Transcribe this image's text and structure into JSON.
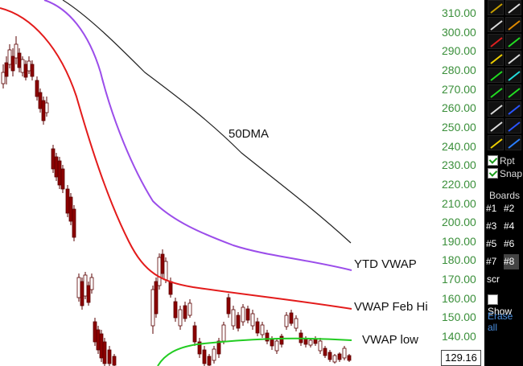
{
  "chart_data": {
    "type": "candlestick",
    "y_axis": {
      "ticks": [
        "310.00",
        "300.00",
        "290.00",
        "280.00",
        "270.00",
        "260.00",
        "250.00",
        "240.00",
        "230.00",
        "220.00",
        "210.00",
        "200.00",
        "190.00",
        "180.00",
        "170.00",
        "160.00",
        "150.00",
        "140.00"
      ],
      "range": [
        126,
        320
      ],
      "grid": false
    },
    "current_price": "129.16",
    "series": [
      {
        "name": "50DMA",
        "color": "#222222"
      },
      {
        "name": "YTD VWAP",
        "color": "#9b4dea"
      },
      {
        "name": "VWAP Feb Hi",
        "color": "#e31b1b"
      },
      {
        "name": "VWAP low",
        "color": "#22cc22"
      }
    ],
    "candle_color_up": "#ffffff",
    "candle_color_down": "#8b0000"
  },
  "annotations": {
    "dma": "50DMA",
    "ytd": "YTD VWAP",
    "febhi": "VWAP Feb Hi",
    "low": "VWAP low"
  },
  "toolbar": {
    "rpt": "Rpt",
    "snap": "Snap",
    "boards": "Boards",
    "board_buttons": [
      "#1",
      "#2",
      "#3",
      "#4",
      "#5",
      "#6",
      "#7",
      "#8"
    ],
    "scr": "scr",
    "show": "Show",
    "erase_all": "Erase all"
  }
}
